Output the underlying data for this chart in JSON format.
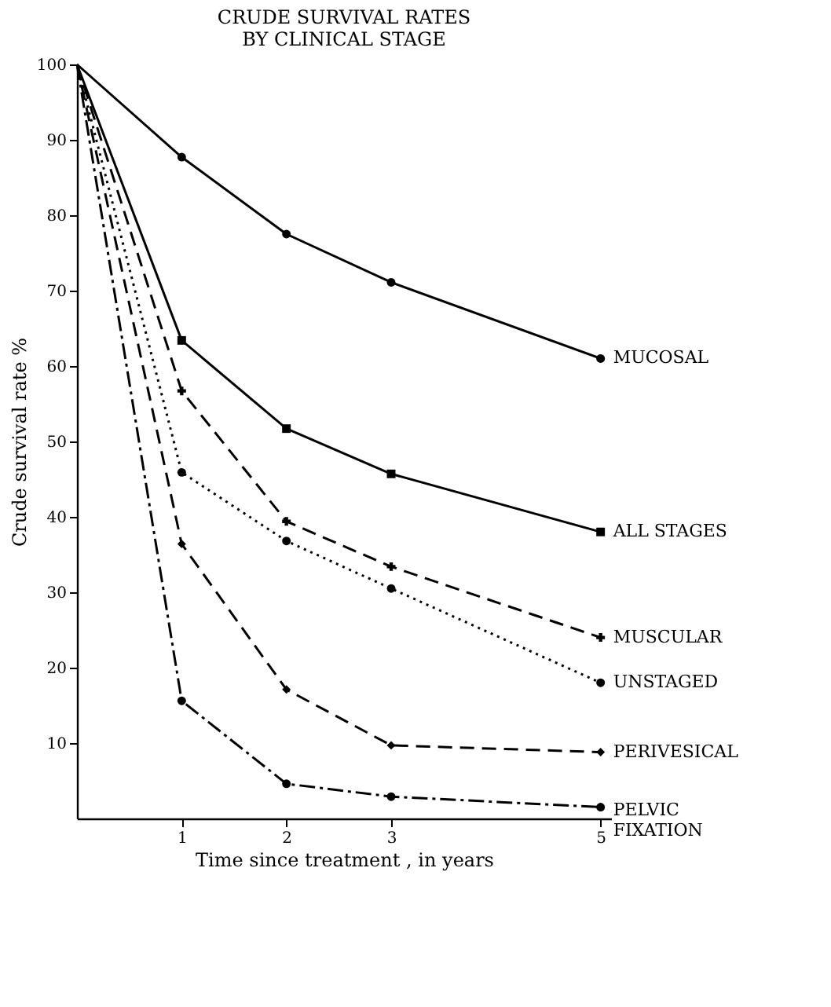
{
  "chart_data": {
    "type": "line",
    "title": "CRUDE SURVIVAL RATES\nBY CLINICAL STAGE",
    "xlabel": "Time since treatment , in years",
    "ylabel": "Crude survival rate %",
    "x": [
      0,
      1,
      2,
      3,
      5
    ],
    "series": [
      {
        "name": "MUCOSAL",
        "color": "#000000",
        "values": [
          100,
          87.7,
          77.5,
          71.1,
          61
        ],
        "marker": "circle",
        "line_style": "solid"
      },
      {
        "name": "ALL STAGES",
        "color": "#000000",
        "values": [
          100,
          63.4,
          51.7,
          45.7,
          38
        ],
        "marker": "square",
        "line_style": "solid"
      },
      {
        "name": "MUSCULAR",
        "color": "#000000",
        "values": [
          100,
          56.7,
          39.4,
          33.4,
          24
        ],
        "marker": "cross",
        "line_style": "dashed"
      },
      {
        "name": "UNSTAGED",
        "color": "#000000",
        "values": [
          100,
          45.9,
          36.8,
          30.5,
          18
        ],
        "marker": "circle",
        "line_style": "dotted"
      },
      {
        "name": "PERIVESICAL",
        "color": "#000000",
        "values": [
          100,
          36.4,
          17.1,
          9.7,
          8.8
        ],
        "marker": "diamond",
        "line_style": "dashed"
      },
      {
        "name": "PELVIC\nFIXATION",
        "color": "#000000",
        "values": [
          100,
          15.6,
          4.6,
          2.9,
          1.5
        ],
        "marker": "circle",
        "line_style": "dashdot"
      }
    ],
    "xlim": [
      0,
      5.1
    ],
    "xticks": [
      1,
      2,
      3,
      5
    ],
    "ylim": [
      0,
      100
    ],
    "yticks": [
      10,
      20,
      30,
      40,
      50,
      60,
      70,
      80,
      90,
      100
    ],
    "grid": false,
    "legend": false
  }
}
